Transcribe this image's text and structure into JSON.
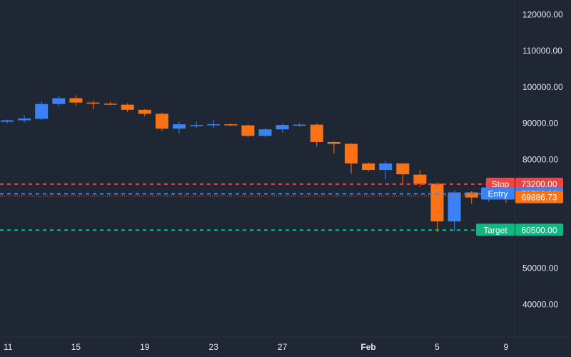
{
  "chart_data": {
    "type": "candlestick",
    "title": "",
    "xlabel": "",
    "ylabel": "",
    "ylim": [
      31000,
      124000
    ],
    "y_ticks": [
      40000,
      50000,
      60000,
      70000,
      80000,
      90000,
      100000,
      110000,
      120000
    ],
    "y_tick_labels": [
      "40000.00",
      "50000.00",
      "60000.00",
      "70000.00",
      "80000.00",
      "90000.00",
      "100000.00",
      "110000.00",
      "120000.00"
    ],
    "x_ticks": [
      {
        "label": "11",
        "index": 0
      },
      {
        "label": "15",
        "index": 4
      },
      {
        "label": "19",
        "index": 8
      },
      {
        "label": "23",
        "index": 12
      },
      {
        "label": "27",
        "index": 16
      },
      {
        "label": "Feb",
        "index": 21
      },
      {
        "label": "5",
        "index": 25
      },
      {
        "label": "9",
        "index": 29
      }
    ],
    "candles": [
      {
        "o": 90400,
        "h": 91000,
        "l": 90000,
        "c": 90800
      },
      {
        "o": 90800,
        "h": 92200,
        "l": 90200,
        "c": 91300
      },
      {
        "o": 91200,
        "h": 96200,
        "l": 90900,
        "c": 95300
      },
      {
        "o": 95300,
        "h": 97600,
        "l": 94500,
        "c": 96900
      },
      {
        "o": 96900,
        "h": 97700,
        "l": 94800,
        "c": 95700
      },
      {
        "o": 95700,
        "h": 96200,
        "l": 93900,
        "c": 95400
      },
      {
        "o": 95400,
        "h": 95900,
        "l": 95000,
        "c": 95100
      },
      {
        "o": 95100,
        "h": 95500,
        "l": 93100,
        "c": 93700
      },
      {
        "o": 93700,
        "h": 93900,
        "l": 91900,
        "c": 92600
      },
      {
        "o": 92600,
        "h": 92900,
        "l": 87800,
        "c": 88500
      },
      {
        "o": 88500,
        "h": 90400,
        "l": 87200,
        "c": 89700
      },
      {
        "o": 89500,
        "h": 90400,
        "l": 88700,
        "c": 89500
      },
      {
        "o": 89600,
        "h": 91000,
        "l": 88500,
        "c": 89700
      },
      {
        "o": 89700,
        "h": 90000,
        "l": 89100,
        "c": 89400
      },
      {
        "o": 89400,
        "h": 89700,
        "l": 86100,
        "c": 86500
      },
      {
        "o": 86500,
        "h": 88800,
        "l": 86200,
        "c": 88300
      },
      {
        "o": 88300,
        "h": 89900,
        "l": 87400,
        "c": 89500
      },
      {
        "o": 89500,
        "h": 90100,
        "l": 89000,
        "c": 89600
      },
      {
        "o": 89600,
        "h": 89900,
        "l": 83600,
        "c": 84800
      },
      {
        "o": 84800,
        "h": 85000,
        "l": 81700,
        "c": 84300
      },
      {
        "o": 84300,
        "h": 84500,
        "l": 76100,
        "c": 78900
      },
      {
        "o": 78900,
        "h": 79200,
        "l": 76700,
        "c": 77100
      },
      {
        "o": 77100,
        "h": 79500,
        "l": 74500,
        "c": 78900
      },
      {
        "o": 78900,
        "h": 79100,
        "l": 73000,
        "c": 75900
      },
      {
        "o": 75800,
        "h": 77100,
        "l": 72400,
        "c": 73300
      },
      {
        "o": 73300,
        "h": 73500,
        "l": 60000,
        "c": 62900
      },
      {
        "o": 62900,
        "h": 71500,
        "l": 60200,
        "c": 70900
      },
      {
        "o": 70900,
        "h": 71300,
        "l": 67800,
        "c": 69500
      },
      {
        "o": 69500,
        "h": 70900,
        "l": 68300,
        "c": 70400
      },
      {
        "o": 70000,
        "h": 71000,
        "l": 68000,
        "c": 69886.73
      }
    ],
    "levels": [
      {
        "name": "Stop",
        "value": 73200,
        "label": "Stop",
        "value_label": "73200.00",
        "color": "#ef4444",
        "style": "dashed"
      },
      {
        "name": "Entry",
        "value": 70500,
        "label": "Entry",
        "value_label": "70500.00",
        "color": "#3b82f6",
        "style": "dashed"
      },
      {
        "name": "Target",
        "value": 60500,
        "label": "Target",
        "value_label": "60500.00",
        "color": "#10b981",
        "style": "dashed"
      }
    ],
    "last_price": {
      "value": 69886.73,
      "label": "69886.73",
      "color": "#f97316"
    },
    "colors": {
      "up": "#3b82f6",
      "down": "#f97316",
      "background": "#1f2634",
      "grid": "#2a3242",
      "axis_text": "#e5e7eb"
    },
    "grid": false,
    "legend": "none"
  }
}
